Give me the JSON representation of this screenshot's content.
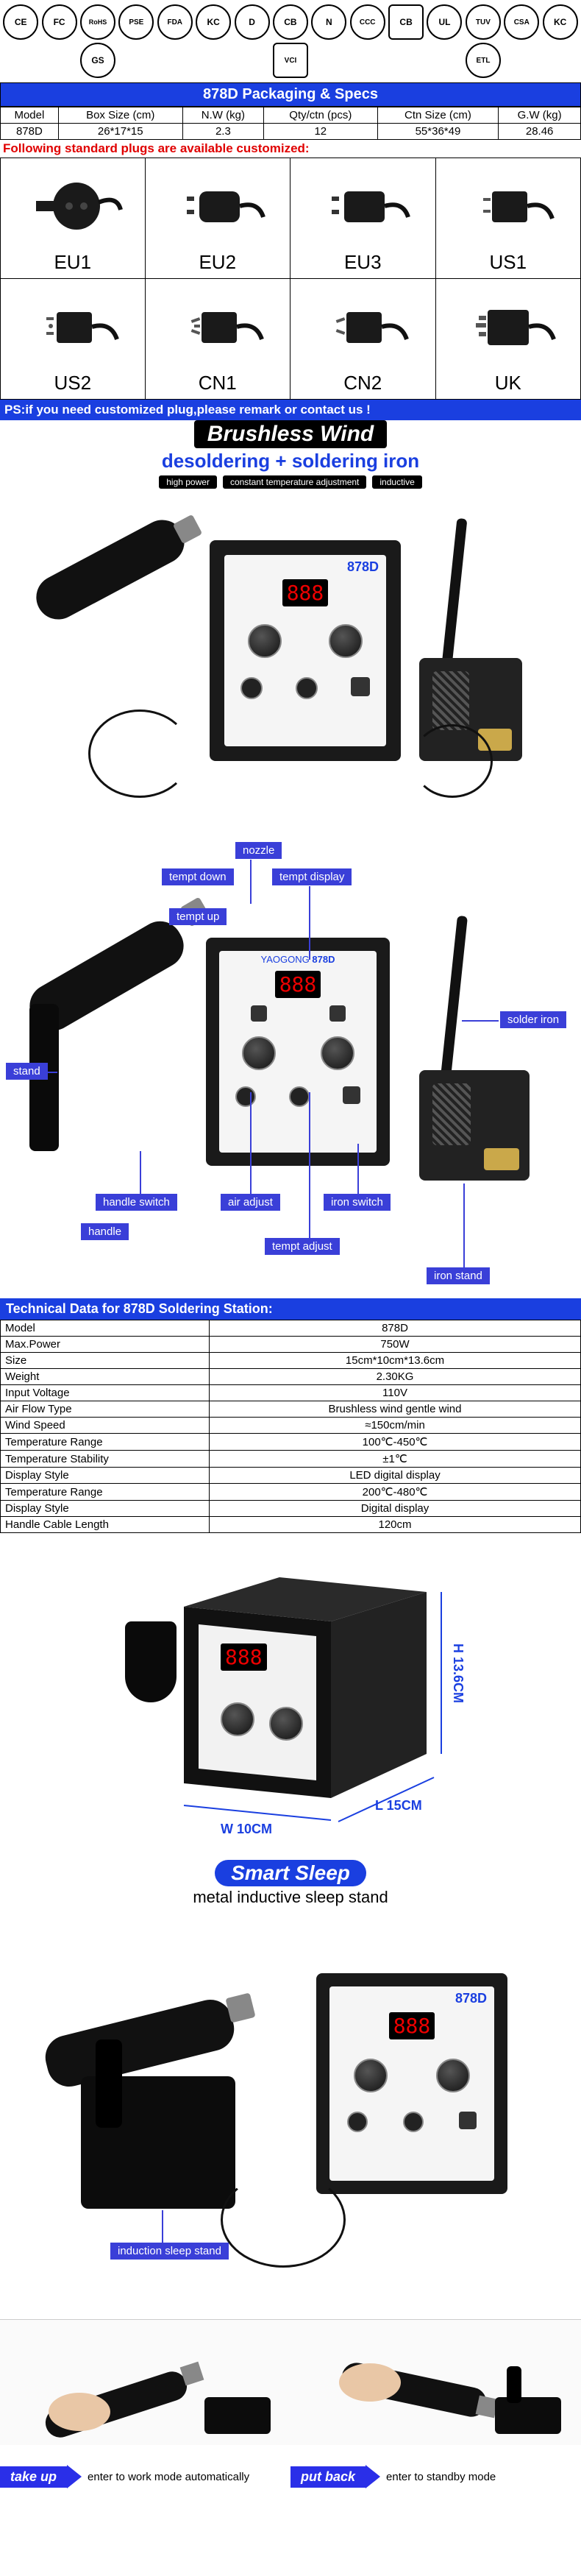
{
  "certs": [
    "CE",
    "FC",
    "RoHS",
    "PSE",
    "FDA",
    "KC",
    "D",
    "CB",
    "N",
    "CCC",
    "CB",
    "UL",
    "TUV",
    "CSA",
    "KC",
    "GS",
    "VCI",
    "ETL"
  ],
  "packaging": {
    "header": "878D Packaging & Specs",
    "cols": [
      "Model",
      "Box Size (cm)",
      "N.W (kg)",
      "Qty/ctn (pcs)",
      "Ctn Size (cm)",
      "G.W (kg)"
    ],
    "row": [
      "878D",
      "26*17*15",
      "2.3",
      "12",
      "55*36*49",
      "28.46"
    ]
  },
  "plug_banner": "Following standard plugs are available customized:",
  "plugs": [
    "EU1",
    "EU2",
    "EU3",
    "US1",
    "US2",
    "CN1",
    "CN2",
    "UK"
  ],
  "ps_banner": "PS:if you need customized plug,please remark or contact us !",
  "brushless": {
    "title": "Brushless Wind",
    "sub": "desoldering + soldering iron",
    "tags": [
      "high power",
      "constant temperature adjustment",
      "inductive"
    ]
  },
  "led_readout": "888",
  "brand_model": "878D",
  "diagram_labels": {
    "nozzle": "nozzle",
    "tempt_down": "tempt down",
    "tempt_display": "tempt display",
    "tempt_up": "tempt up",
    "stand": "stand",
    "solder_iron": "solder iron",
    "handle_switch": "handle switch",
    "air_adjust": "air adjust",
    "iron_switch": "iron switch",
    "handle": "handle",
    "tempt_adjust": "tempt adjust",
    "iron_stand": "iron stand"
  },
  "tech": {
    "header": "Technical Data for 878D Soldering Station:",
    "rows": [
      [
        "Model",
        "878D"
      ],
      [
        "Max.Power",
        "750W"
      ],
      [
        "Size",
        "15cm*10cm*13.6cm"
      ],
      [
        "Weight",
        "2.30KG"
      ],
      [
        "Input Voltage",
        "110V"
      ],
      [
        "Air Flow Type",
        "Brushless wind gentle wind"
      ],
      [
        "Wind Speed",
        "≈150cm/min"
      ],
      [
        "Temperature Range",
        "100℃-450℃"
      ],
      [
        "Temperature Stability",
        "±1℃"
      ],
      [
        "Display Style",
        "LED digital display"
      ],
      [
        "Temperature Range",
        "200℃-480℃"
      ],
      [
        "Display Style",
        "Digital display"
      ],
      [
        "Handle Cable Length",
        "120cm"
      ]
    ]
  },
  "dims": {
    "w": "W 10CM",
    "l": "L 15CM",
    "h": "H 13.6CM"
  },
  "smart_sleep": {
    "title": "Smart Sleep",
    "sub": "metal inductive sleep stand",
    "label": "induction sleep stand"
  },
  "take_put": {
    "take": {
      "badge": "take up",
      "text": "enter to work mode automatically"
    },
    "put": {
      "badge": "put back",
      "text": "enter to standby mode"
    }
  },
  "colors": {
    "blue": "#1a3fe0",
    "label_blue": "#3a3fd8",
    "red": "#e00000",
    "led_red": "#e00000"
  }
}
